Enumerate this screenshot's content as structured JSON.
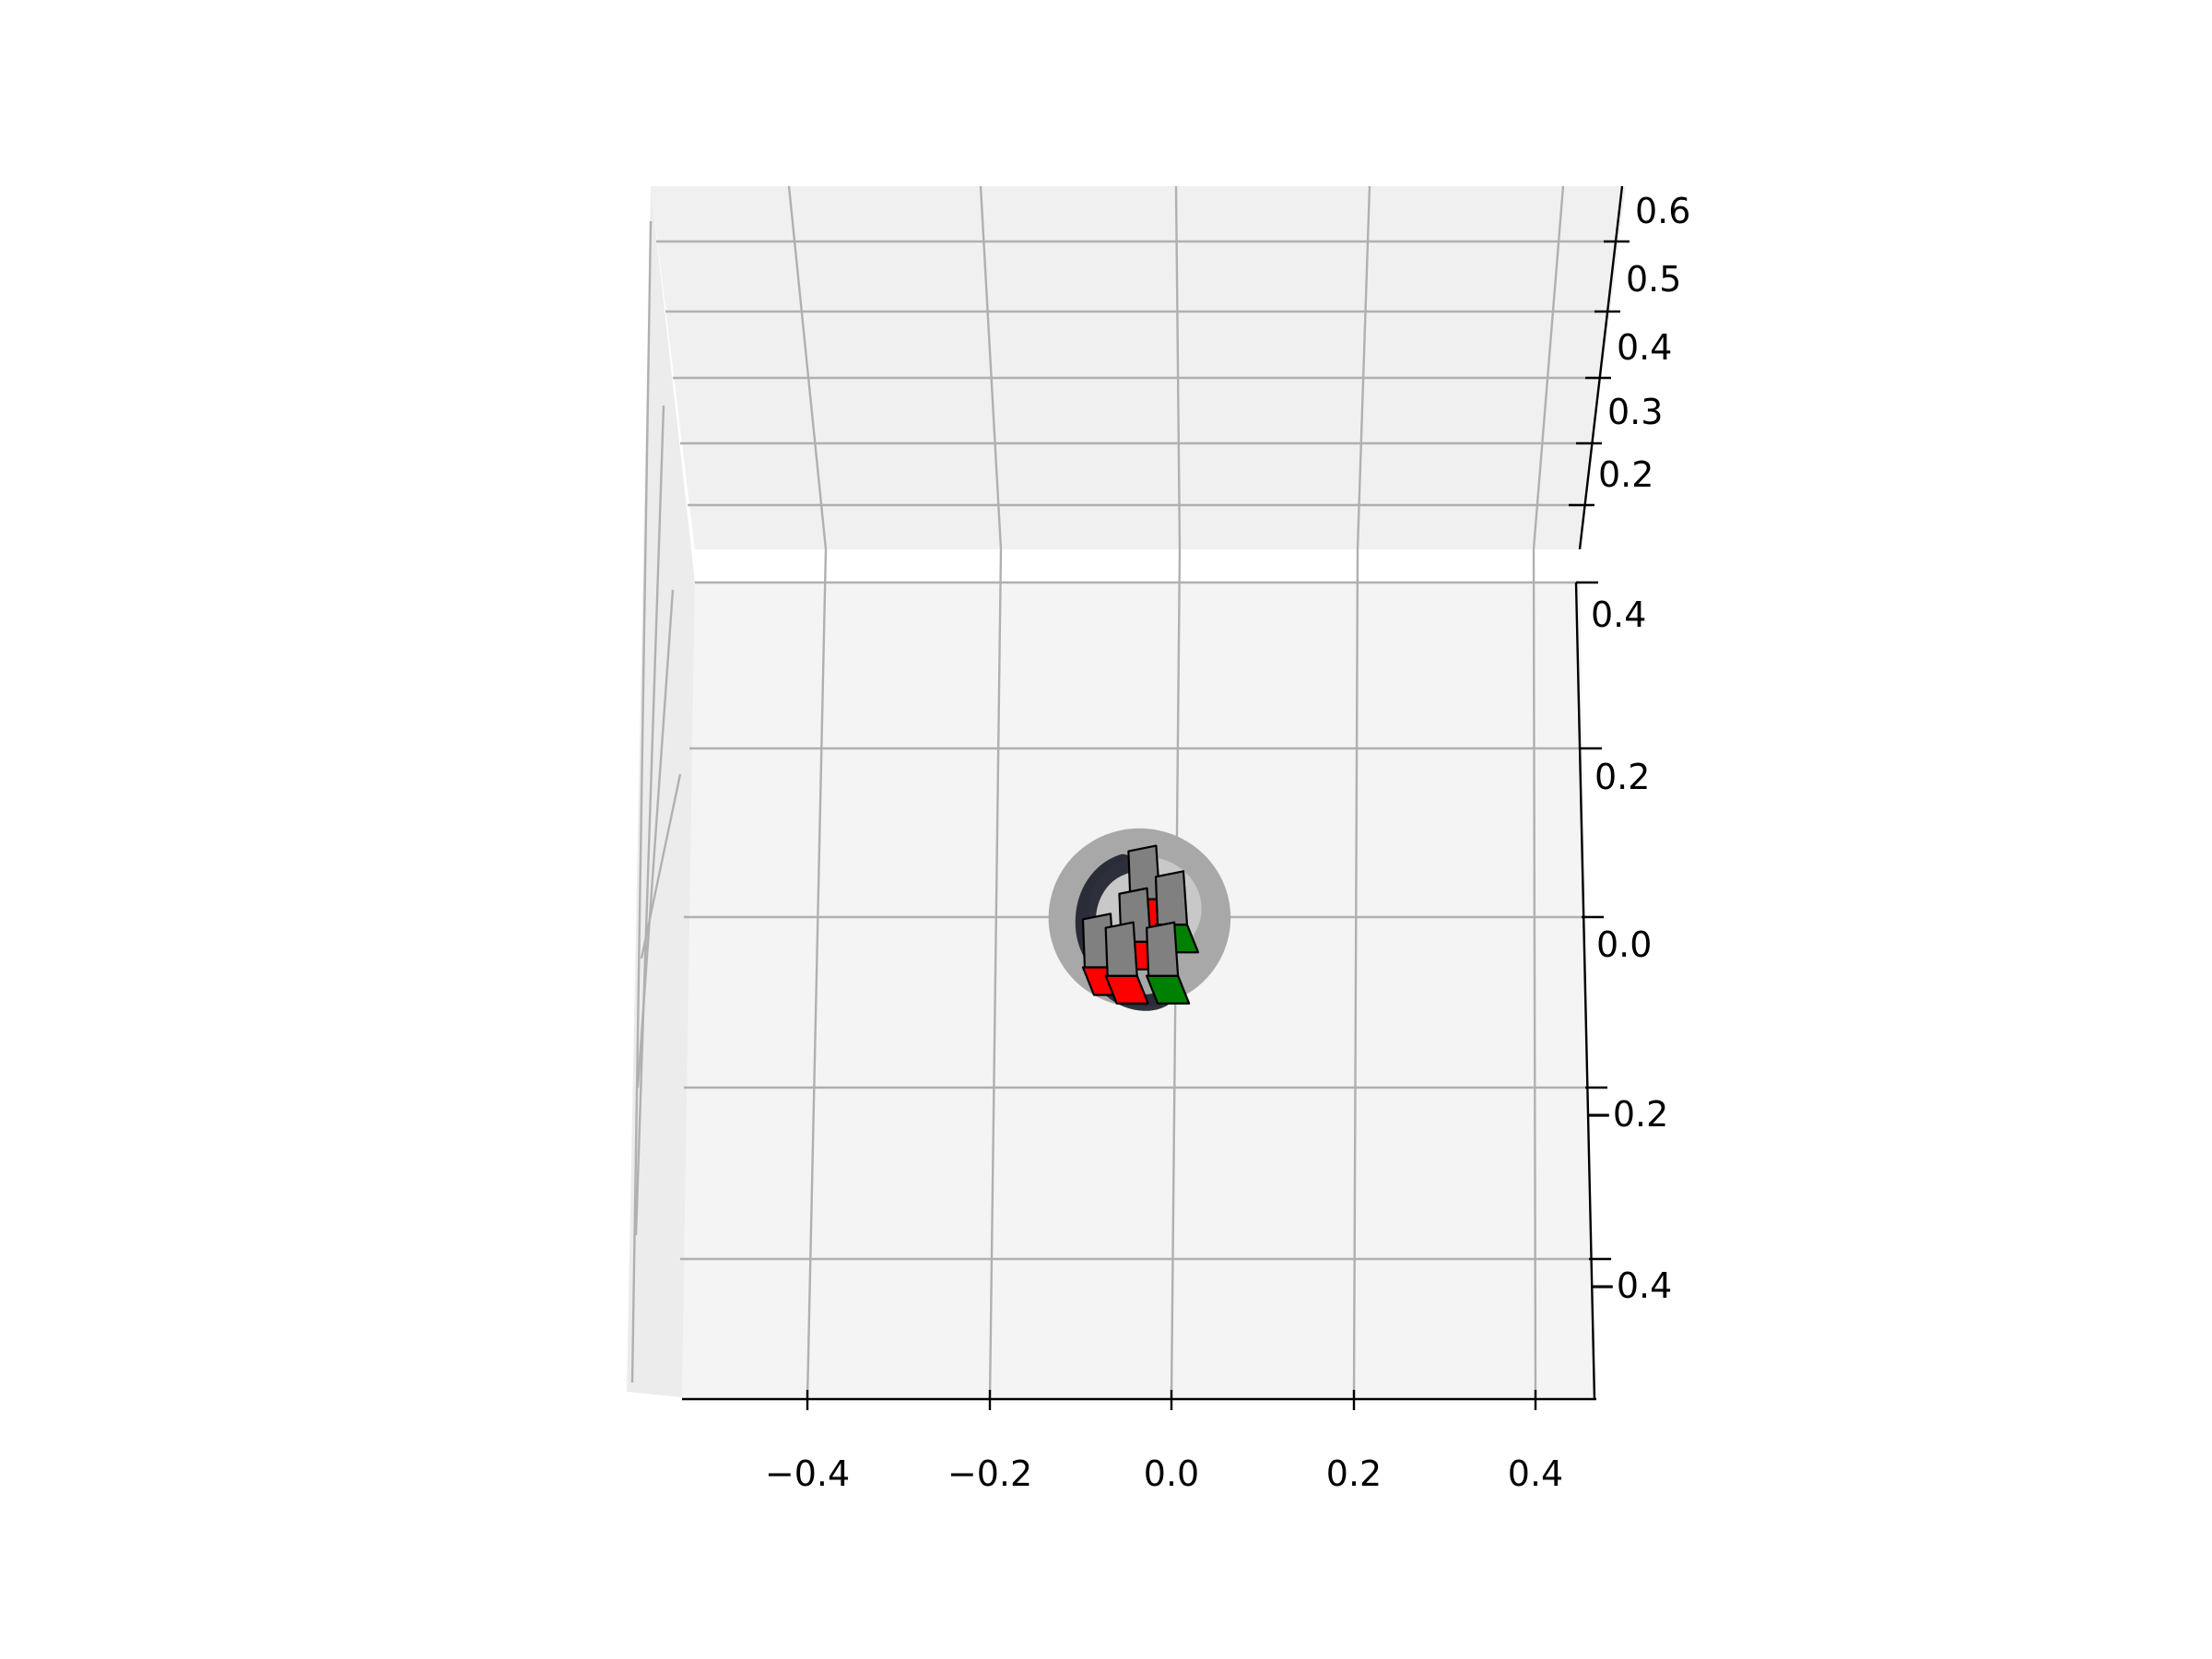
{
  "chart_data": {
    "type": "scatter",
    "projection": "3d",
    "view": "top-down (elevation ~80°)",
    "title": "",
    "xlabel": "",
    "ylabel": "",
    "zlabel": "",
    "x_ticks": [
      "−0.4",
      "−0.2",
      "0.0",
      "0.2",
      "0.4"
    ],
    "y_ticks": [
      "0.4",
      "0.2",
      "0.0",
      "−0.2",
      "−0.4"
    ],
    "z_ticks": [
      "0.6",
      "0.5",
      "0.4",
      "0.3",
      "0.2"
    ],
    "xlim": [
      -0.55,
      0.46
    ],
    "ylim": [
      -0.53,
      0.46
    ],
    "zlim": [
      0.15,
      0.62
    ],
    "grid": true,
    "pane_colors": {
      "floor": "#f4f4f4",
      "back": "#f0f0f0",
      "side": "#ececec"
    },
    "point_cloud": {
      "shape": "ellipse",
      "center": [
        -0.035,
        0.01
      ],
      "semi_axes": [
        0.1,
        0.105
      ],
      "color": "#a8a8a8"
    },
    "gripper_boxes": [
      {
        "center": [
          -0.03,
          0.06
        ],
        "body_color": "#808080",
        "side_color": "#ff0000"
      },
      {
        "center": [
          0.0,
          0.03
        ],
        "body_color": "#808080",
        "side_color": "#008000"
      },
      {
        "center": [
          -0.04,
          0.01
        ],
        "body_color": "#808080",
        "side_color": "#ff0000"
      },
      {
        "center": [
          -0.08,
          -0.02
        ],
        "body_color": "#808080",
        "side_color": "#ff0000"
      },
      {
        "center": [
          -0.055,
          -0.03
        ],
        "body_color": "#808080",
        "side_color": "#ff0000"
      },
      {
        "center": [
          -0.01,
          -0.03
        ],
        "body_color": "#808080",
        "side_color": "#008000"
      }
    ],
    "colors": {
      "grasp_body": "#808080",
      "grasp_fail": "#ff0000",
      "grasp_success": "#008000"
    }
  }
}
